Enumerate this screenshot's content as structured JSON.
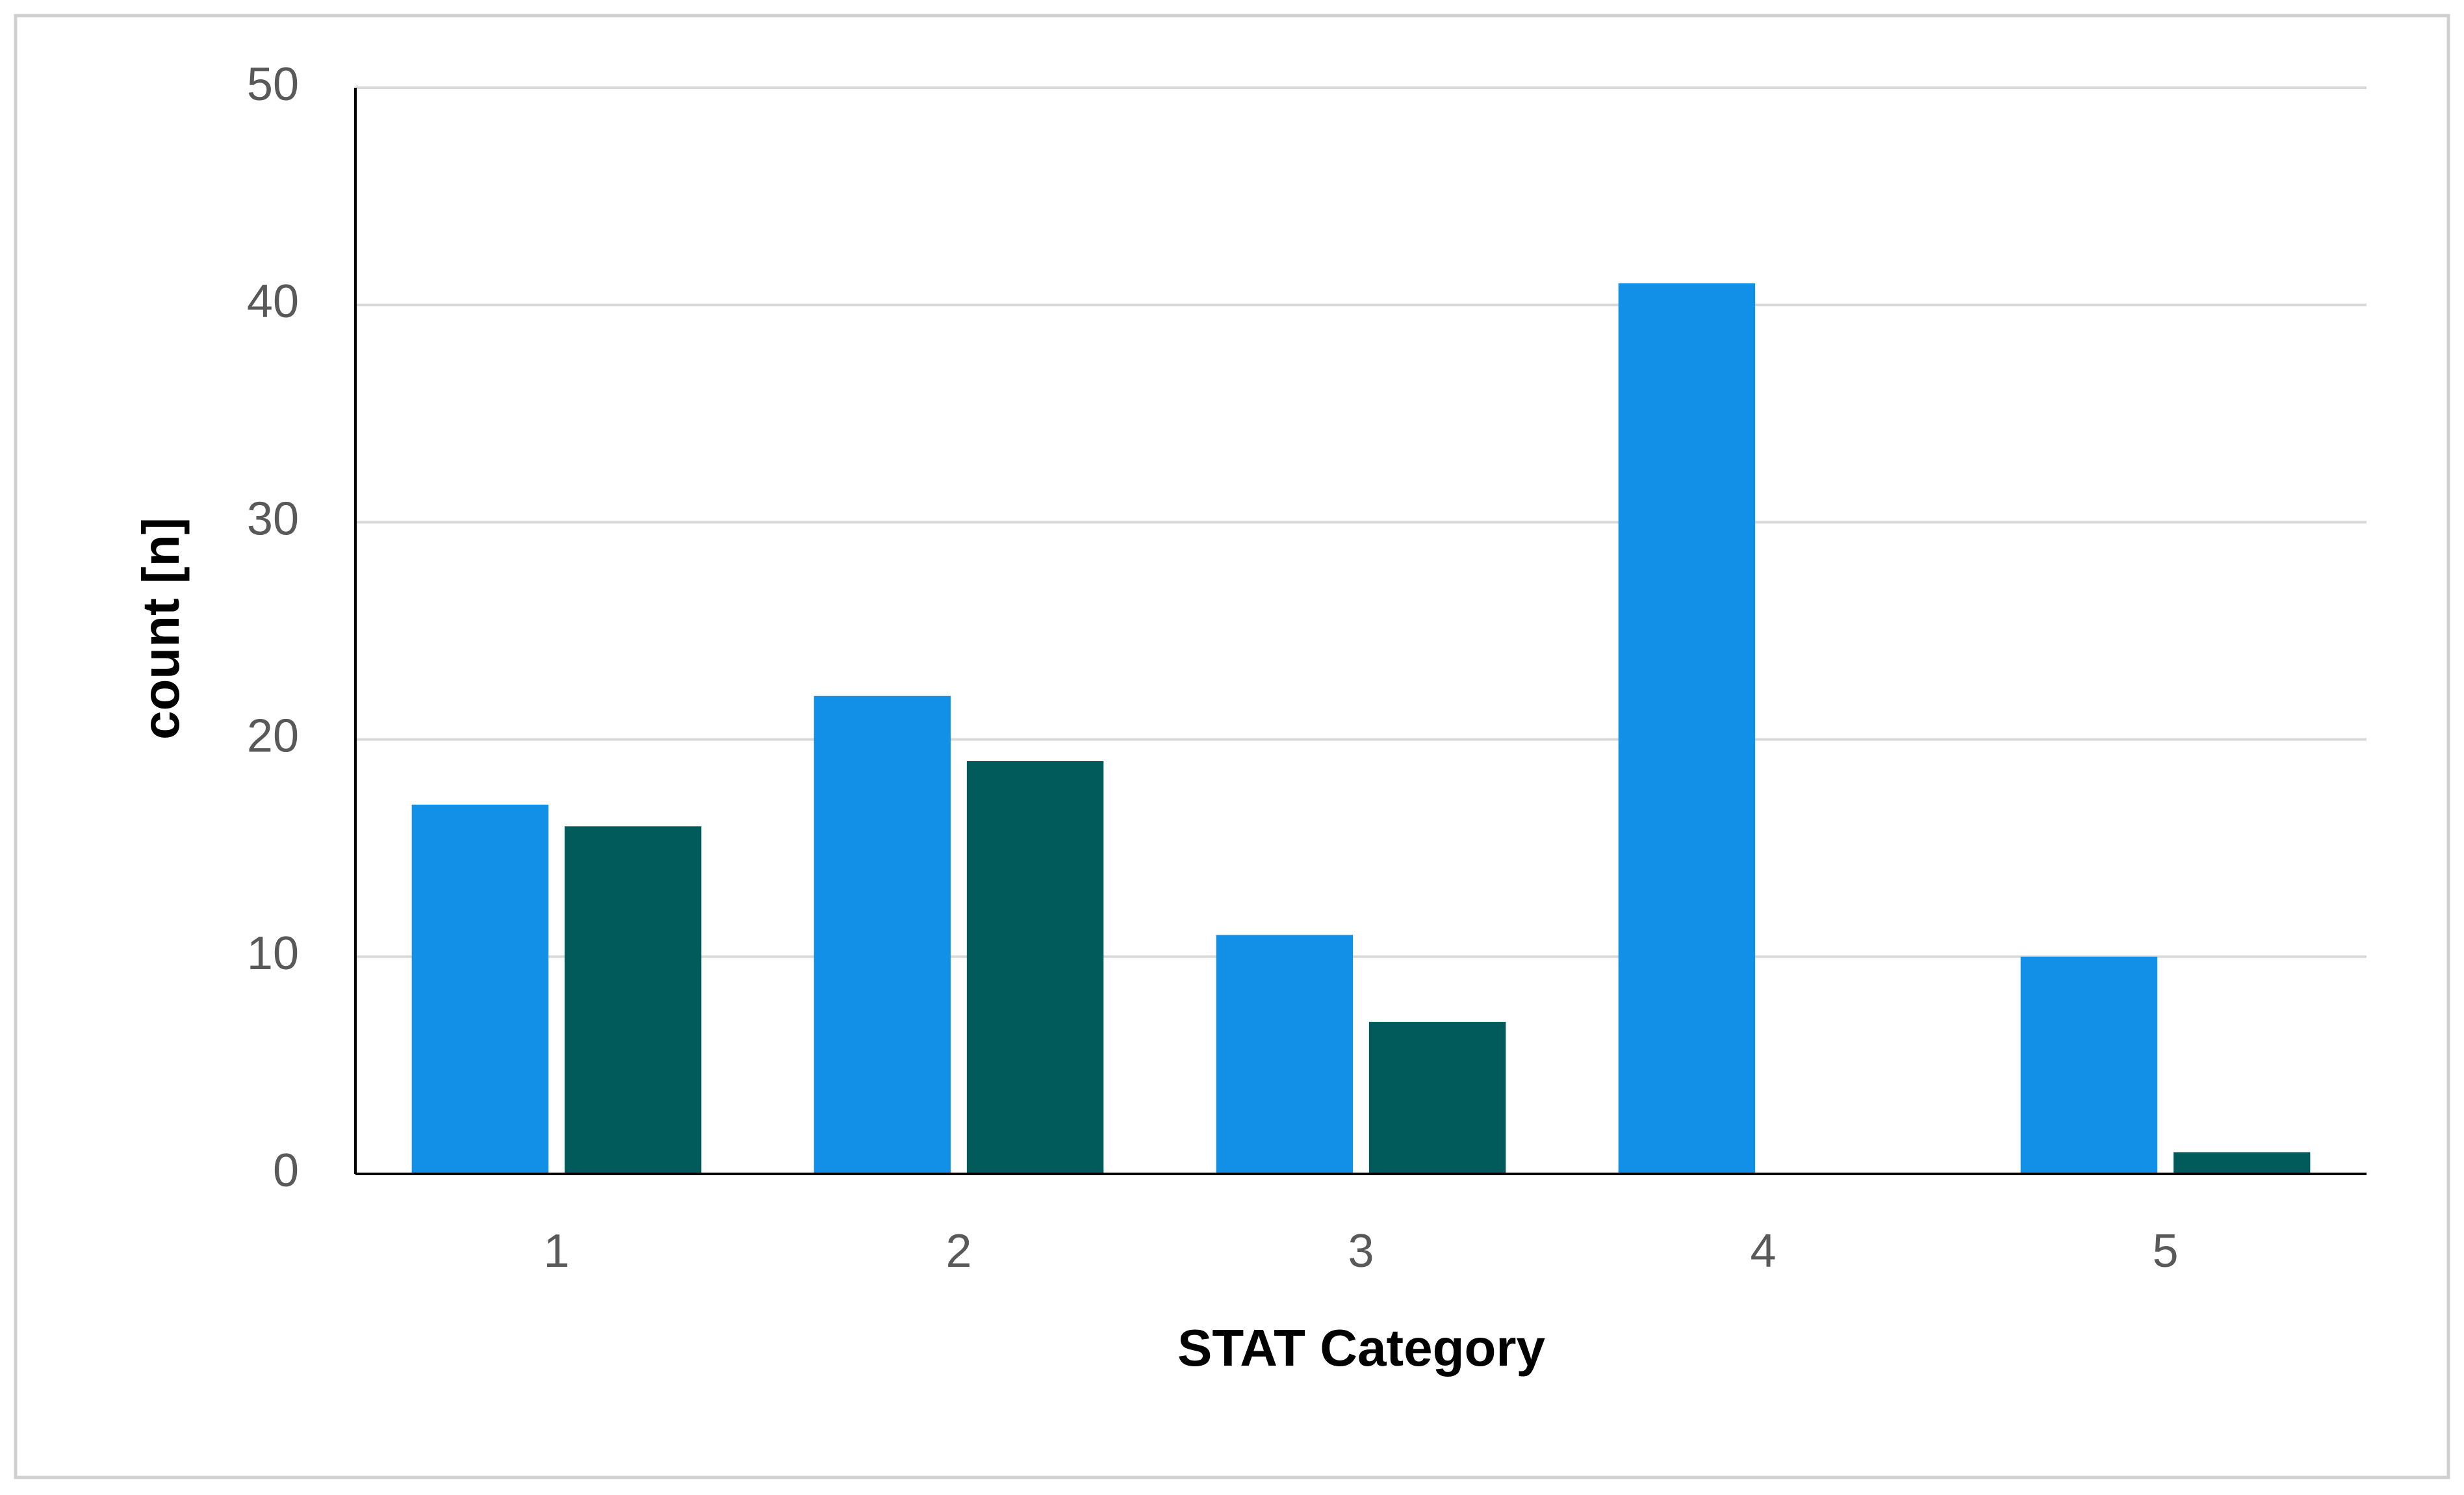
{
  "chart_data": {
    "type": "bar",
    "categories": [
      "1",
      "2",
      "3",
      "4",
      "5"
    ],
    "series": [
      {
        "color": "#128fe6",
        "values": [
          17,
          22,
          11,
          41,
          10
        ]
      },
      {
        "color": "#005b5a",
        "values": [
          16,
          19,
          7,
          0,
          1
        ]
      }
    ],
    "x_label": "STAT Category",
    "y_label": "count [n]",
    "ylim": [
      0,
      50
    ],
    "yticks": [
      0,
      10,
      20,
      30,
      40,
      50
    ],
    "grid": true
  }
}
